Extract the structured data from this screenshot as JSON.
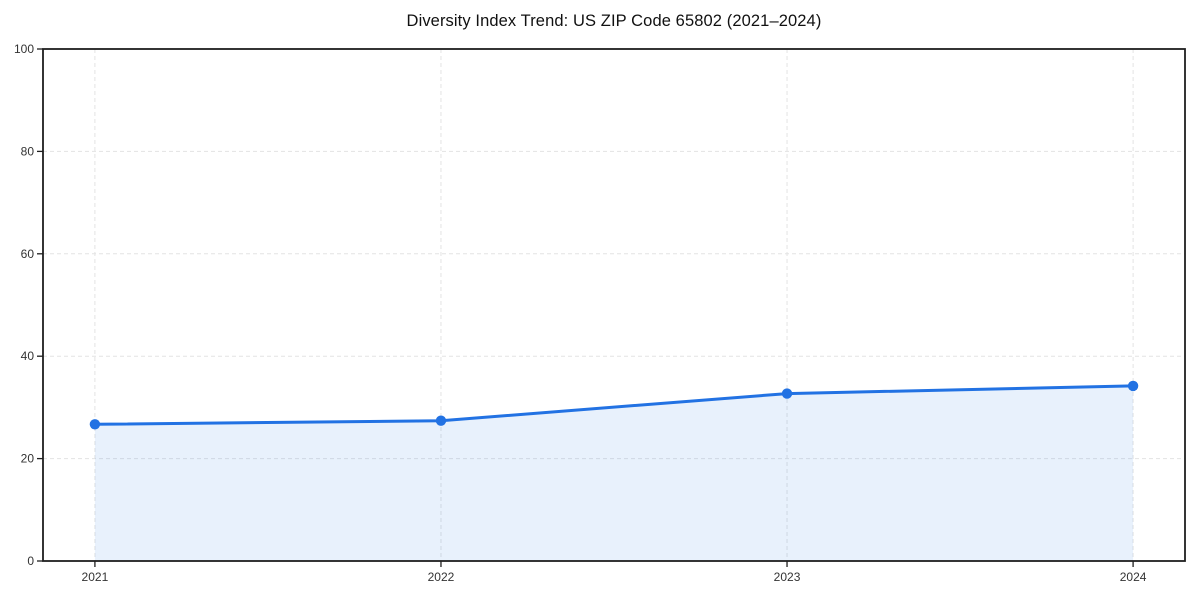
{
  "chart_data": {
    "type": "area",
    "title": "Diversity Index Trend: US ZIP Code 65802 (2021–2024)",
    "categories": [
      "2021",
      "2022",
      "2023",
      "2024"
    ],
    "x": [
      2021,
      2022,
      2023,
      2024
    ],
    "series": [
      {
        "name": "Diversity Index",
        "values": [
          26.7,
          27.4,
          32.7,
          34.2
        ]
      }
    ],
    "xlabel": "",
    "ylabel": "",
    "ylim": [
      0,
      100
    ],
    "yticks": [
      0,
      20,
      40,
      60,
      80,
      100
    ],
    "xlim": [
      2020.85,
      2024.15
    ],
    "grid": "both-dashed",
    "legend_position": "none",
    "colors": {
      "line": "#2272e3",
      "marker": "#2272e3",
      "fill": "rgba(34, 114, 227, 0.10)",
      "grid": "#e3e3e3",
      "spine": "#1f1f1f",
      "tick": "#1f1f1f",
      "tick_label": "#333333",
      "title": "#111111",
      "background": "#ffffff"
    },
    "style": {
      "line_width": 3,
      "marker_radius": 5.2,
      "spine_width": 1.8
    }
  }
}
